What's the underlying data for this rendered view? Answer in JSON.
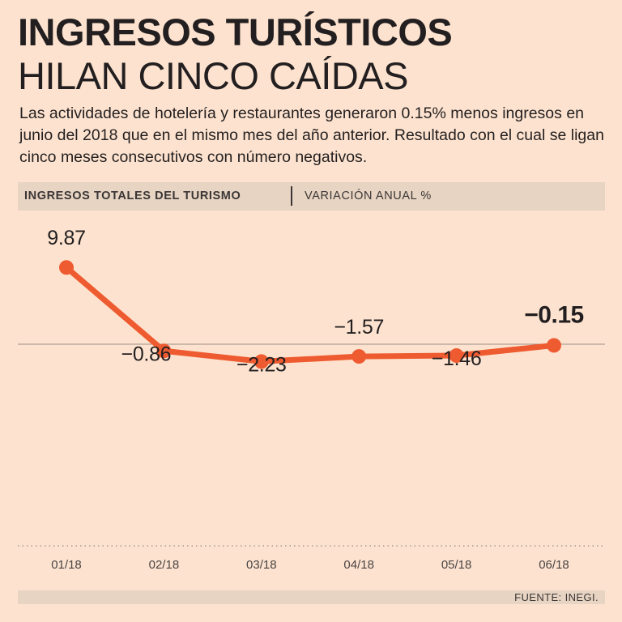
{
  "header": {
    "title": "INGRESOS TURÍSTICOS",
    "subtitle": "HILAN CINCO CAÍDAS",
    "description": "Las actividades de hotelería y restaurantes generaron 0.15% menos ingresos en junio del 2018 que en el mismo mes del año anterior. Resultado con el cual se ligan cinco meses consecutivos con número negativos."
  },
  "chart_header": {
    "left": "INGRESOS TOTALES DEL TURISMO",
    "right": "VARIACIÓN ANUAL %"
  },
  "footer": {
    "source": "FUENTE: INEGI."
  },
  "colors": {
    "background": "#fde3cf",
    "line": "#ef5b30",
    "band": "#e8d4c2",
    "text": "#231f20"
  },
  "chart_data": {
    "type": "line",
    "categories": [
      "01/18",
      "02/18",
      "03/18",
      "04/18",
      "05/18",
      "06/18"
    ],
    "values": [
      9.87,
      -0.86,
      -2.23,
      -1.57,
      -1.46,
      -0.15
    ],
    "labels": [
      "9.87",
      "−0.86",
      "−2.23",
      "−1.57",
      "−1.46",
      "−0.15"
    ],
    "highlight_index": 5,
    "reference_line": 0,
    "ylabel": "VARIACIÓN ANUAL %",
    "xlabel": ""
  }
}
